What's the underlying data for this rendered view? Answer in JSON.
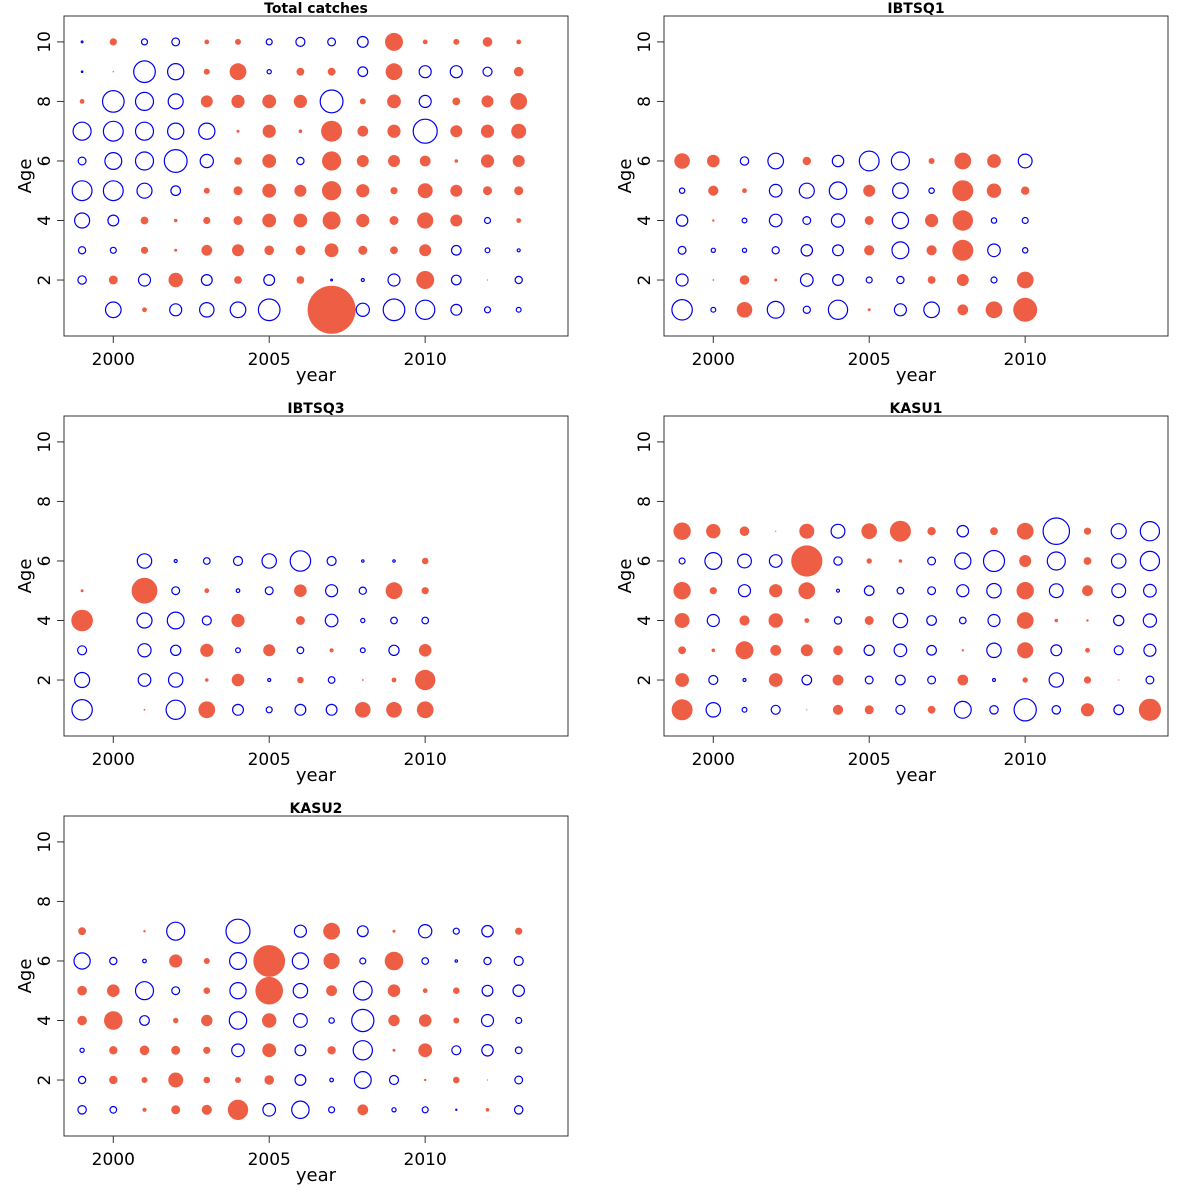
{
  "colors": {
    "positive": "#EE5E45",
    "negative": "#0000EE",
    "frame": "#333333"
  },
  "chart_data": [
    {
      "type": "scatter",
      "subtype": "bubble",
      "title": "Total catches",
      "xlabel": "year",
      "ylabel": "Age",
      "xlim": [
        1998.42,
        2014.58
      ],
      "ylim": [
        0.12,
        10.87
      ],
      "xticks": [
        "2000",
        "2005",
        "2010"
      ],
      "yticks": [
        "2",
        "4",
        "6",
        "8",
        "10"
      ],
      "grid": false,
      "legend": "none",
      "encoding": "bubble radius proportional to |value|; filled red = positive, open blue = negative",
      "years": [
        1999,
        2000,
        2001,
        2002,
        2003,
        2004,
        2005,
        2006,
        2007,
        2008,
        2009,
        2010,
        2011,
        2012,
        2013
      ],
      "ages": [
        1,
        2,
        3,
        4,
        5,
        6,
        7,
        8,
        9,
        10
      ],
      "values": {
        "1": [
          null,
          -1.3,
          0.4,
          -1.0,
          -1.2,
          -1.3,
          -1.8,
          null,
          4.0,
          -1.1,
          -1.8,
          -1.6,
          -0.9,
          -0.5,
          -0.4
        ],
        "2": [
          -0.7,
          0.75,
          -1.0,
          1.2,
          -0.9,
          0.65,
          -0.9,
          0.65,
          -0.15,
          -0.25,
          -1.0,
          1.5,
          -0.8,
          0.1,
          -0.6
        ],
        "3": [
          -0.6,
          -0.5,
          0.6,
          0.25,
          0.9,
          1.0,
          0.8,
          0.8,
          1.15,
          0.75,
          0.65,
          1.0,
          -0.8,
          -0.4,
          -0.25
        ],
        "4": [
          -1.25,
          -0.9,
          0.65,
          0.3,
          0.6,
          0.75,
          1.15,
          1.15,
          1.5,
          1.1,
          0.75,
          1.35,
          1.0,
          -0.5,
          0.4
        ],
        "5": [
          -1.65,
          -1.65,
          -1.25,
          -0.8,
          0.5,
          0.75,
          1.15,
          1.0,
          1.6,
          1.1,
          0.6,
          1.25,
          1.0,
          0.75,
          0.75
        ],
        "6": [
          -0.65,
          -1.4,
          -1.5,
          -1.9,
          -1.1,
          0.65,
          1.15,
          -0.6,
          1.6,
          1.0,
          1.0,
          0.9,
          0.3,
          1.1,
          1.0
        ],
        "7": [
          -1.5,
          -1.65,
          -1.5,
          -1.35,
          -1.35,
          0.25,
          1.1,
          0.3,
          1.75,
          0.9,
          1.1,
          -2.0,
          1.0,
          1.1,
          1.25
        ],
        "8": [
          0.4,
          -1.8,
          -1.5,
          -1.25,
          1.0,
          1.1,
          1.15,
          1.1,
          -1.9,
          0.5,
          1.15,
          -1.0,
          0.65,
          1.0,
          1.4
        ],
        "9": [
          -0.12,
          0.12,
          -1.8,
          -1.35,
          0.5,
          1.4,
          -0.35,
          0.65,
          0.65,
          -0.8,
          1.4,
          -1.0,
          -1.0,
          -0.75,
          0.8
        ],
        "10": [
          -0.15,
          0.6,
          -0.5,
          -0.65,
          0.4,
          0.5,
          -0.5,
          -0.75,
          -0.65,
          -0.9,
          1.5,
          0.4,
          0.5,
          0.8,
          0.4
        ]
      }
    },
    {
      "type": "scatter",
      "subtype": "bubble",
      "title": "IBTSQ1",
      "xlabel": "year",
      "ylabel": "Age",
      "xlim": [
        1998.42,
        2014.58
      ],
      "ylim": [
        0.12,
        10.87
      ],
      "xticks": [
        "2000",
        "2005",
        "2010"
      ],
      "yticks": [
        "2",
        "4",
        "6",
        "8",
        "10"
      ],
      "grid": false,
      "legend": "none",
      "years": [
        1999,
        2000,
        2001,
        2002,
        2003,
        2004,
        2005,
        2006,
        2007,
        2008,
        2009,
        2010
      ],
      "ages": [
        1,
        2,
        3,
        4,
        5,
        6
      ],
      "values": {
        "1": [
          -1.7,
          -0.4,
          1.3,
          -1.4,
          -0.6,
          -1.6,
          0.25,
          -1.0,
          -1.3,
          0.9,
          1.4,
          2.0
        ],
        "2": [
          -1.0,
          0.15,
          0.8,
          0.25,
          -1.05,
          -0.9,
          -0.5,
          -0.6,
          0.65,
          1.0,
          -0.5,
          1.4
        ],
        "3": [
          -0.65,
          -0.35,
          -0.35,
          -0.6,
          -0.95,
          -0.9,
          0.85,
          -1.4,
          0.85,
          1.75,
          -1.05,
          -0.45
        ],
        "4": [
          -0.95,
          0.2,
          -0.4,
          -1.05,
          -0.65,
          -1.1,
          0.75,
          -1.35,
          1.1,
          1.7,
          -0.45,
          -0.5
        ],
        "5": [
          -0.45,
          0.85,
          0.4,
          -1.05,
          -1.25,
          -1.45,
          1.0,
          -1.3,
          -0.45,
          1.75,
          1.2,
          0.7
        ],
        "6": [
          1.3,
          1.05,
          -0.7,
          -1.3,
          0.7,
          -0.95,
          -1.65,
          -1.5,
          0.5,
          1.4,
          1.15,
          -1.15
        ]
      }
    },
    {
      "type": "scatter",
      "subtype": "bubble",
      "title": "IBTSQ3",
      "xlabel": "year",
      "ylabel": "Age",
      "xlim": [
        1998.42,
        2014.58
      ],
      "ylim": [
        0.12,
        10.87
      ],
      "xticks": [
        "2000",
        "2005",
        "2010"
      ],
      "yticks": [
        "2",
        "4",
        "6",
        "8",
        "10"
      ],
      "grid": false,
      "legend": "none",
      "years": [
        1999,
        2000,
        2001,
        2002,
        2003,
        2004,
        2005,
        2006,
        2007,
        2008,
        2009,
        2010
      ],
      "ages": [
        1,
        2,
        3,
        4,
        5,
        6
      ],
      "values": {
        "1": [
          -1.7,
          null,
          0.15,
          -1.6,
          1.4,
          -0.9,
          -0.5,
          -0.9,
          -0.9,
          1.3,
          1.3,
          1.4
        ],
        "2": [
          -1.25,
          null,
          -1.05,
          -1.2,
          0.3,
          1.05,
          -0.25,
          0.55,
          -0.55,
          0.15,
          0.4,
          1.7
        ],
        "3": [
          -0.75,
          null,
          -1.1,
          -0.85,
          1.1,
          -0.4,
          1.0,
          -0.55,
          0.35,
          -0.4,
          -0.85,
          1.05
        ],
        "4": [
          1.8,
          null,
          -1.25,
          -1.4,
          -0.75,
          1.1,
          null,
          0.75,
          -1.05,
          -0.35,
          -0.55,
          -0.55
        ],
        "5": [
          0.25,
          null,
          2.15,
          -0.65,
          0.4,
          -0.3,
          -0.65,
          1.05,
          -1.0,
          -0.6,
          1.4,
          0.6
        ],
        "6": [
          null,
          null,
          -1.2,
          -0.25,
          -0.55,
          -0.75,
          -1.2,
          -1.7,
          -0.75,
          -0.2,
          -0.2,
          0.55
        ]
      }
    },
    {
      "type": "scatter",
      "subtype": "bubble",
      "title": "KASU1",
      "xlabel": "year",
      "ylabel": "Age",
      "xlim": [
        1998.42,
        2014.58
      ],
      "ylim": [
        0.12,
        10.87
      ],
      "xticks": [
        "2000",
        "2005",
        "2010"
      ],
      "yticks": [
        "2",
        "4",
        "6",
        "8",
        "10"
      ],
      "grid": false,
      "legend": "none",
      "years": [
        1999,
        2000,
        2001,
        2002,
        2003,
        2004,
        2005,
        2006,
        2007,
        2008,
        2009,
        2010,
        2011,
        2012,
        2013,
        2014
      ],
      "ages": [
        1,
        2,
        3,
        4,
        5,
        6,
        7
      ],
      "values": {
        "1": [
          1.75,
          -1.2,
          -0.4,
          -0.75,
          0.1,
          0.85,
          0.75,
          -0.75,
          0.65,
          -1.4,
          -0.7,
          -1.85,
          -0.7,
          1.1,
          -0.8,
          1.85
        ],
        "2": [
          1.15,
          -0.75,
          -0.25,
          1.15,
          -0.8,
          0.9,
          -0.65,
          -0.8,
          -0.65,
          0.9,
          -0.25,
          0.45,
          -1.2,
          0.6,
          0.05,
          -0.65
        ],
        "3": [
          0.65,
          0.3,
          1.5,
          0.9,
          1.0,
          0.8,
          -0.85,
          -1.05,
          -0.8,
          0.2,
          -1.2,
          1.35,
          -0.9,
          0.4,
          -0.75,
          -1.0
        ],
        "4": [
          1.25,
          -1.0,
          0.85,
          1.2,
          0.4,
          -0.6,
          0.75,
          -1.2,
          -0.8,
          -0.55,
          -1.0,
          1.4,
          0.3,
          0.2,
          -0.85,
          -1.1
        ],
        "5": [
          1.45,
          0.6,
          -1.0,
          1.1,
          1.4,
          -0.25,
          -0.8,
          -0.55,
          -0.65,
          -1.0,
          -1.2,
          1.45,
          -1.15,
          0.9,
          -1.15,
          -1.05
        ],
        "6": [
          -0.5,
          -1.4,
          -1.15,
          -1.05,
          2.6,
          -0.7,
          0.45,
          0.3,
          -0.65,
          -1.35,
          -1.75,
          1.0,
          -1.5,
          0.65,
          -1.2,
          -1.6
        ],
        "7": [
          1.45,
          1.2,
          0.8,
          0.1,
          1.25,
          -1.15,
          1.3,
          1.75,
          0.7,
          -0.95,
          0.65,
          1.4,
          -2.2,
          0.6,
          -1.25,
          -1.6
        ]
      }
    },
    {
      "type": "scatter",
      "subtype": "bubble",
      "title": "KASU2",
      "xlabel": "year",
      "ylabel": "Age",
      "xlim": [
        1998.42,
        2014.58
      ],
      "ylim": [
        0.12,
        10.87
      ],
      "xticks": [
        "2000",
        "2005",
        "2010"
      ],
      "yticks": [
        "2",
        "4",
        "6",
        "8",
        "10"
      ],
      "grid": false,
      "legend": "none",
      "years": [
        1999,
        2000,
        2001,
        2002,
        2003,
        2004,
        2005,
        2006,
        2007,
        2008,
        2009,
        2010,
        2011,
        2012,
        2013
      ],
      "ages": [
        1,
        2,
        3,
        4,
        5,
        6,
        7
      ],
      "values": {
        "1": [
          -0.7,
          -0.55,
          0.35,
          0.75,
          0.85,
          1.7,
          -1.05,
          -1.45,
          -0.5,
          0.9,
          -0.35,
          -0.5,
          -0.1,
          0.3,
          -0.7
        ],
        "2": [
          -0.6,
          0.7,
          0.5,
          1.25,
          0.55,
          0.5,
          0.8,
          -0.9,
          -0.3,
          -1.4,
          -0.75,
          0.2,
          0.55,
          0.05,
          -0.65
        ],
        "3": [
          -0.35,
          0.7,
          0.8,
          0.75,
          0.6,
          -1.05,
          1.15,
          -0.9,
          0.7,
          -1.6,
          0.25,
          1.15,
          -0.75,
          -0.95,
          -0.55
        ],
        "4": [
          0.8,
          1.55,
          -0.8,
          0.45,
          0.95,
          -1.45,
          1.2,
          -1.15,
          -0.45,
          -1.85,
          0.95,
          1.05,
          0.5,
          -1.0,
          -0.5
        ],
        "5": [
          0.8,
          1.05,
          -1.5,
          -0.65,
          0.55,
          -1.35,
          2.3,
          -1.2,
          0.9,
          -1.55,
          1.05,
          0.4,
          0.55,
          -0.9,
          -0.95
        ],
        "6": [
          -1.35,
          -0.6,
          -0.3,
          1.1,
          0.5,
          -1.4,
          2.65,
          -1.35,
          1.35,
          -0.5,
          1.55,
          -0.55,
          -0.2,
          -0.6,
          -0.75
        ],
        "7": [
          0.65,
          null,
          0.2,
          -1.5,
          null,
          -2.0,
          null,
          -1.0,
          1.4,
          -0.9,
          0.25,
          -1.1,
          -0.5,
          -0.95,
          0.6
        ]
      }
    }
  ]
}
